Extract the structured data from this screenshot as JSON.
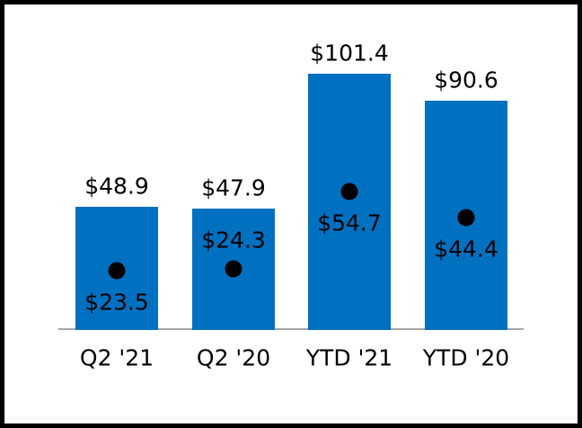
{
  "chart_data": {
    "type": "bar",
    "title": "",
    "xlabel": "",
    "ylabel": "",
    "categories": [
      "Q2 '21",
      "Q2 '20",
      "YTD '21",
      "YTD '20"
    ],
    "series": [
      {
        "name": "bar-values",
        "type": "bar",
        "values": [
          48.9,
          47.9,
          101.4,
          90.6
        ],
        "labels": [
          "$48.9",
          "$47.9",
          "$101.4",
          "$90.6"
        ],
        "color": "#0070C0",
        "label_position": "above-bar"
      },
      {
        "name": "dot-markers",
        "type": "scatter",
        "values": [
          23.5,
          24.3,
          54.7,
          44.4
        ],
        "labels": [
          "$23.5",
          "$24.3",
          "$54.7",
          "$44.4"
        ],
        "label_positions": [
          "below",
          "above",
          "below",
          "below"
        ],
        "color": "#000000"
      }
    ],
    "ylim": [
      0,
      110
    ],
    "grid": false,
    "legend": false,
    "axis_line_color": "#A6A6A6",
    "text_color": "#000000",
    "background_color": "#FFFFFF",
    "frame_border_color": "#000000"
  }
}
